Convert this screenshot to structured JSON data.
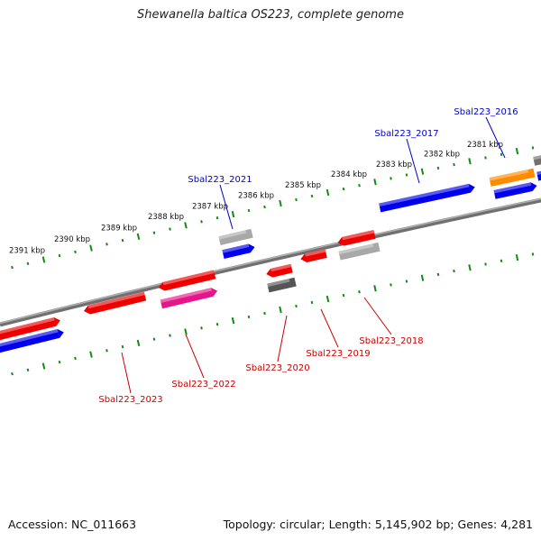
{
  "title": "Shewanella baltica OS223, complete genome",
  "footer": {
    "accession": "Accession: NC_011663",
    "topology": "Topology: circular; Length: 5,145,902 bp; Genes: 4,281"
  },
  "colors": {
    "backbone": "#707070",
    "ruler_ticks": "#138a13",
    "strand_forward_blue": "#0000ee",
    "red": "#ee0000",
    "magenta": "#e6168a",
    "orange": "#ff8c00",
    "gray_dark": "#555555",
    "gray_light": "#a8a8a8",
    "label_blue": "#0000cc",
    "label_red": "#cc0000"
  },
  "ruler": {
    "unit": "kbp",
    "labels": [
      {
        "kbp": 2381,
        "text": "2381 kbp"
      },
      {
        "kbp": 2382,
        "text": "2382 kbp"
      },
      {
        "kbp": 2383,
        "text": "2383 kbp"
      },
      {
        "kbp": 2384,
        "text": "2384 kbp"
      },
      {
        "kbp": 2385,
        "text": "2385 kbp"
      },
      {
        "kbp": 2386,
        "text": "2386 kbp"
      },
      {
        "kbp": 2387,
        "text": "2387 kbp"
      },
      {
        "kbp": 2388,
        "text": "2388 kbp"
      },
      {
        "kbp": 2389,
        "text": "2389 kbp"
      },
      {
        "kbp": 2390,
        "text": "2390 kbp"
      },
      {
        "kbp": 2391,
        "text": "2391 kbp"
      }
    ]
  },
  "gene_labels": [
    {
      "text": "Sbal223_2016",
      "color": "label_blue"
    },
    {
      "text": "Sbal223_2017",
      "color": "label_blue"
    },
    {
      "text": "Sbal223_2021",
      "color": "label_blue"
    },
    {
      "text": "Sbal223_2018",
      "color": "label_red"
    },
    {
      "text": "Sbal223_2019",
      "color": "label_red"
    },
    {
      "text": "Sbal223_2020",
      "color": "label_red"
    },
    {
      "text": "Sbal223_2022",
      "color": "label_red"
    },
    {
      "text": "Sbal223_2023",
      "color": "label_red"
    }
  ]
}
